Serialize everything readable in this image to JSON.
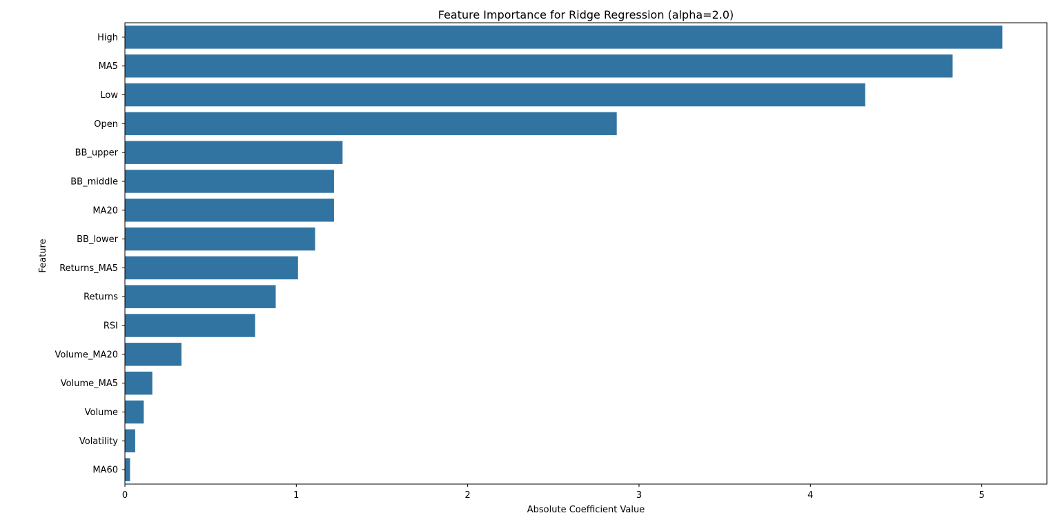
{
  "chart_data": {
    "type": "bar",
    "orientation": "horizontal",
    "title": "Feature Importance for Ridge Regression (alpha=2.0)",
    "xlabel": "Absolute Coefficient Value",
    "ylabel": "Feature",
    "xlim": [
      0,
      5.38
    ],
    "xticks": [
      0,
      1,
      2,
      3,
      4,
      5
    ],
    "grid": false,
    "bar_color": "#3274a1",
    "categories": [
      "High",
      "MA5",
      "Low",
      "Open",
      "BB_upper",
      "BB_middle",
      "MA20",
      "BB_lower",
      "Returns_MA5",
      "Returns",
      "RSI",
      "Volume_MA20",
      "Volume_MA5",
      "Volume",
      "Volatility",
      "MA60"
    ],
    "values": [
      5.12,
      4.83,
      4.32,
      2.87,
      1.27,
      1.22,
      1.22,
      1.11,
      1.01,
      0.88,
      0.76,
      0.33,
      0.16,
      0.11,
      0.06,
      0.03
    ]
  }
}
